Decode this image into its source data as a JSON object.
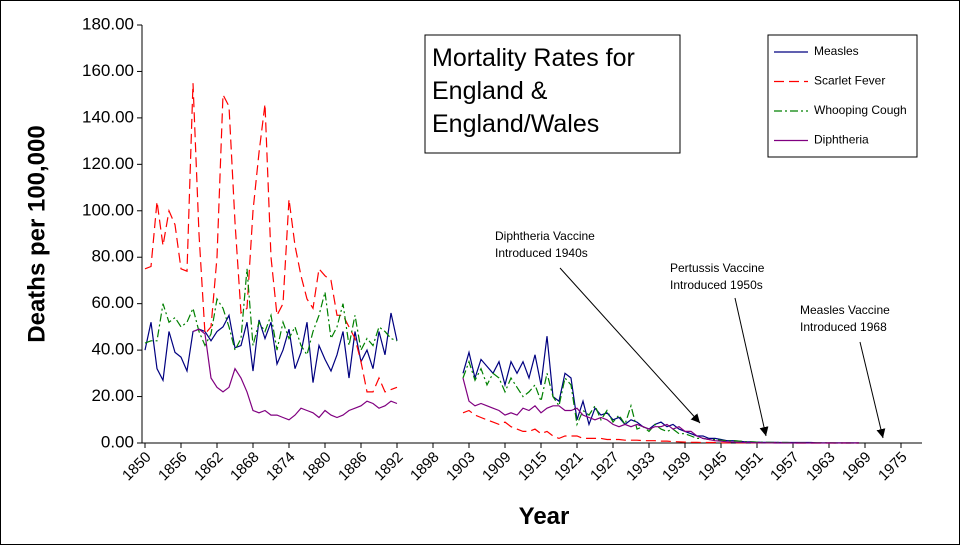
{
  "chart_data": {
    "type": "line",
    "title": [
      "Mortality Rates for",
      "England &",
      "England/Wales"
    ],
    "xlabel": "Year",
    "ylabel": "Deaths per 100,000",
    "categories": [
      "1850",
      null,
      null,
      null,
      null,
      null,
      "1856",
      null,
      null,
      null,
      null,
      null,
      "1862",
      null,
      null,
      null,
      null,
      null,
      "1868",
      null,
      null,
      null,
      null,
      null,
      "1874",
      null,
      null,
      null,
      null,
      null,
      "1880",
      null,
      null,
      null,
      null,
      null,
      "1886",
      null,
      null,
      null,
      null,
      null,
      "1892",
      null,
      null,
      null,
      null,
      null,
      "1898",
      null,
      null,
      null,
      null,
      null,
      "1903",
      null,
      null,
      null,
      null,
      null,
      "1909",
      null,
      null,
      null,
      null,
      null,
      "1915",
      null,
      null,
      null,
      null,
      null,
      "1921",
      null,
      null,
      null,
      null,
      null,
      "1927",
      null,
      null,
      null,
      null,
      null,
      "1933",
      null,
      null,
      null,
      null,
      null,
      "1939",
      null,
      null,
      null,
      null,
      null,
      "1945",
      null,
      null,
      null,
      null,
      null,
      "1951",
      null,
      null,
      null,
      null,
      null,
      "1957",
      null,
      null,
      null,
      null,
      null,
      "1963",
      null,
      null,
      null,
      null,
      null,
      "1969",
      null,
      null,
      null,
      null,
      null,
      "1975",
      null,
      null,
      null
    ],
    "ylim": [
      0,
      180
    ],
    "yticks": [
      {
        "value": 0,
        "label": "0.00"
      },
      {
        "value": 20,
        "label": "20.00"
      },
      {
        "value": 40,
        "label": "40.00"
      },
      {
        "value": 60,
        "label": "60.00"
      },
      {
        "value": 80,
        "label": "80.00"
      },
      {
        "value": 100,
        "label": "100.00"
      },
      {
        "value": 120,
        "label": "120.00"
      },
      {
        "value": 140,
        "label": "140.00"
      },
      {
        "value": 160,
        "label": "160.00"
      },
      {
        "value": 180,
        "label": "180.00"
      }
    ],
    "legend": "top-right",
    "series": [
      {
        "name": "Measles",
        "color": "#000080",
        "dash": "none",
        "values": [
          40,
          52,
          32,
          27,
          48,
          39,
          37,
          31,
          48,
          49,
          48,
          44,
          48,
          50,
          55,
          41,
          42,
          52,
          31,
          53,
          45,
          52,
          34,
          40,
          49,
          32,
          39,
          52,
          26,
          42,
          36,
          31,
          38,
          48,
          28,
          48,
          35,
          40,
          32,
          48,
          38,
          56,
          44,
          null,
          null,
          null,
          null,
          null,
          null,
          null,
          null,
          null,
          null,
          30,
          39,
          28,
          36,
          33,
          30,
          35,
          25,
          35,
          30,
          35,
          28,
          38,
          25,
          46,
          20,
          18,
          30,
          28,
          10,
          18,
          8,
          15,
          12,
          13,
          10,
          11,
          8,
          10,
          9,
          7,
          6,
          8,
          9,
          7,
          8,
          6,
          5,
          4,
          3,
          3,
          2,
          2,
          1.5,
          1,
          1,
          0.8,
          0.5,
          0.5,
          0.4,
          0.3,
          0.3,
          0.3,
          0.2,
          0.2,
          0.2,
          0.2,
          0.2,
          0.2,
          0.1,
          0.1,
          0.1,
          0.1,
          0.1,
          0.1,
          0.1,
          0.1,
          null,
          null,
          null,
          null,
          null,
          null,
          null,
          null,
          null,
          null
        ]
      },
      {
        "name": "Scarlet Fever",
        "color": "#ff0000",
        "dash": "10,5",
        "values": [
          75,
          76,
          104,
          85,
          100,
          94,
          75,
          74,
          155,
          90,
          47,
          50,
          80,
          150,
          145,
          95,
          56,
          58,
          100,
          125,
          146,
          80,
          55,
          60,
          105,
          85,
          72,
          62,
          58,
          75,
          72,
          70,
          55,
          55,
          50,
          45,
          35,
          22,
          22,
          28,
          22,
          23,
          24,
          null,
          null,
          null,
          null,
          null,
          null,
          null,
          null,
          null,
          null,
          13,
          14,
          12,
          11,
          10,
          9,
          8,
          9,
          7,
          6,
          5,
          5,
          6,
          4,
          5,
          3,
          2,
          3,
          3,
          3,
          2,
          2,
          2,
          2,
          1.5,
          1.5,
          1.5,
          1.2,
          1.2,
          1.2,
          1,
          1,
          1,
          0.8,
          0.8,
          0.6,
          0.5,
          0.4,
          0.3,
          0.3,
          0.2,
          0.2,
          0.2,
          0.1,
          0.1,
          0.1,
          0.1,
          0.1,
          0.1,
          0.1,
          0.1,
          0.1,
          0.1,
          0.1,
          0.1,
          0,
          0,
          0,
          0,
          0,
          0,
          0,
          0,
          0,
          0,
          0,
          0,
          null,
          null,
          null,
          null,
          null,
          null,
          null,
          null,
          null,
          null
        ]
      },
      {
        "name": "Whooping Cough",
        "color": "#008000",
        "dash": "8,3,2,3",
        "values": [
          43,
          44,
          44,
          60,
          52,
          54,
          50,
          52,
          58,
          48,
          42,
          47,
          62,
          58,
          50,
          40,
          45,
          75,
          42,
          52,
          48,
          55,
          40,
          52,
          45,
          50,
          42,
          38,
          48,
          55,
          65,
          45,
          50,
          60,
          42,
          55,
          40,
          45,
          42,
          50,
          48,
          45,
          44,
          null,
          null,
          null,
          null,
          null,
          null,
          null,
          null,
          null,
          null,
          28,
          35,
          27,
          32,
          25,
          30,
          28,
          22,
          28,
          24,
          20,
          22,
          25,
          18,
          30,
          20,
          16,
          28,
          25,
          8,
          14,
          12,
          16,
          10,
          14,
          9,
          12,
          8,
          16,
          6,
          7,
          5,
          8,
          6,
          5,
          6,
          4,
          4,
          3,
          2,
          2,
          1.5,
          1.5,
          1.2,
          1,
          1,
          0.8,
          0.6,
          0.5,
          0.4,
          0.3,
          0.3,
          0.2,
          0.2,
          0.2,
          0.1,
          0.1,
          0.1,
          0.1,
          0.1,
          0.1,
          0.1,
          0,
          0,
          0,
          0,
          0,
          null,
          null,
          null,
          null,
          null,
          null,
          null,
          null,
          null,
          null
        ]
      },
      {
        "name": "Diphtheria",
        "color": "#800080",
        "dash": "none",
        "values": [
          null,
          null,
          null,
          null,
          null,
          null,
          null,
          null,
          48,
          49,
          47,
          28,
          24,
          22,
          24,
          32,
          28,
          22,
          14,
          13,
          14,
          12,
          12,
          11,
          10,
          12,
          15,
          14,
          13,
          11,
          14,
          12,
          11,
          12,
          14,
          15,
          16,
          18,
          17,
          15,
          16,
          18,
          17,
          null,
          null,
          null,
          null,
          null,
          null,
          null,
          null,
          null,
          null,
          28,
          18,
          16,
          17,
          16,
          15,
          14,
          12,
          13,
          12,
          15,
          14,
          16,
          13,
          15,
          16,
          16,
          14,
          14,
          15,
          12,
          11,
          10,
          11,
          10,
          8,
          7,
          8,
          7,
          8,
          7,
          6,
          7,
          7,
          8,
          6,
          7,
          5,
          5,
          3,
          2,
          1.5,
          1,
          0.8,
          0.5,
          0.4,
          0.3,
          0.2,
          0.2,
          0.1,
          0.1,
          0.1,
          0,
          0,
          0,
          0,
          0,
          0,
          0,
          0,
          0,
          0,
          0,
          0,
          0,
          0,
          0,
          null,
          null,
          null,
          null,
          null,
          null,
          null,
          null,
          null,
          null
        ]
      }
    ],
    "annotations": [
      {
        "lines": [
          "Diphtheria Vaccine",
          "Introduced 1940s"
        ]
      },
      {
        "lines": [
          "Pertussis Vaccine",
          "Introduced 1950s"
        ]
      },
      {
        "lines": [
          "Measles Vaccine",
          "Introduced 1968"
        ]
      }
    ]
  }
}
